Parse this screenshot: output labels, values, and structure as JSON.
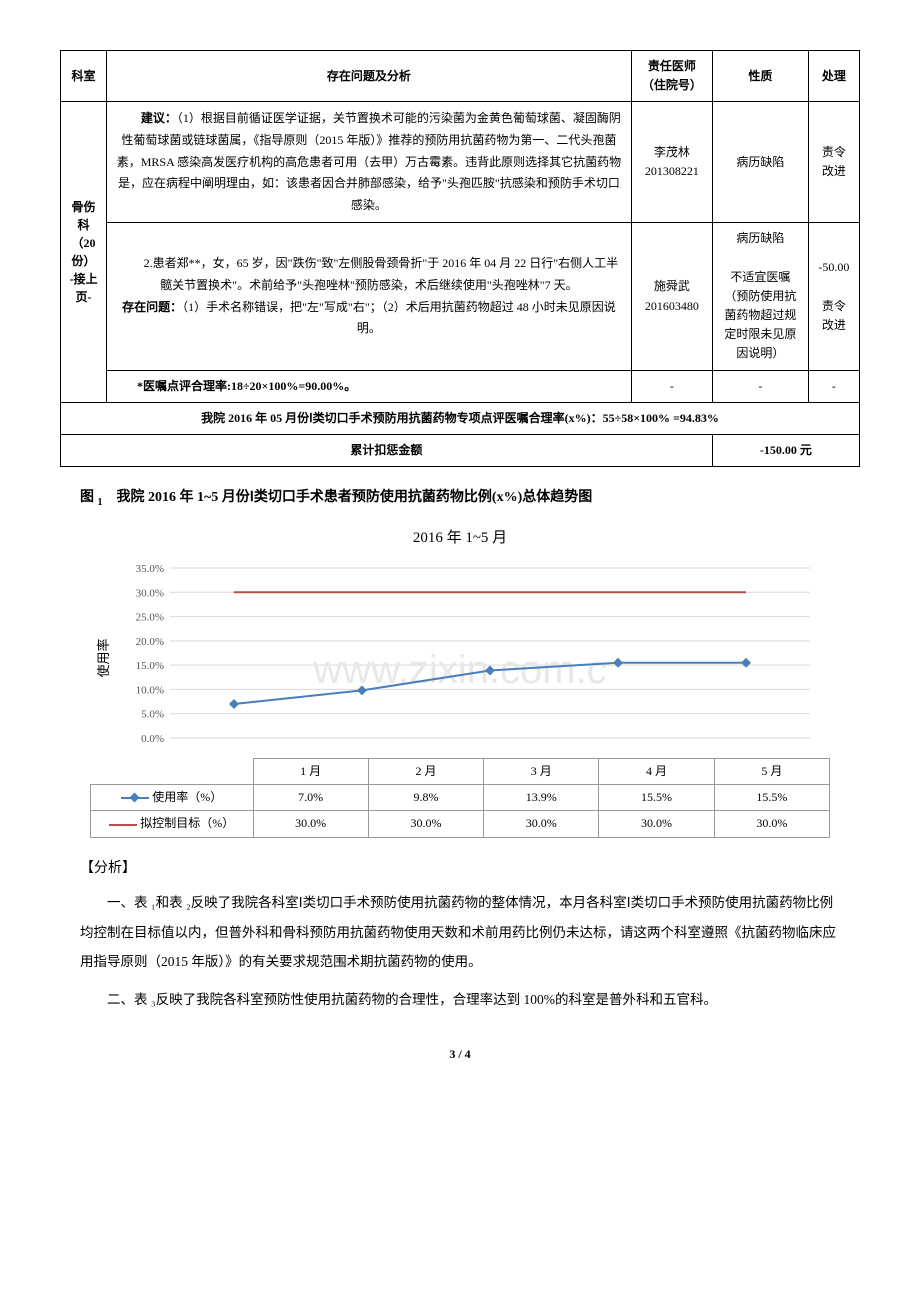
{
  "table": {
    "headers": [
      "科室",
      "存在问题及分析",
      "责任医师（住院号）",
      "性质",
      "处理"
    ],
    "dept": "骨伤科\n（20 份）\n-接上页-",
    "row1": {
      "problem": "建议：（1）根据目前循证医学证据，关节置换术可能的污染菌为金黄色葡萄球菌、凝固酶阴性葡萄球菌或链球菌属，《指导原则（2015 年版）》推荐的预防用抗菌药物为第一、二代头孢菌素，MRSA 感染高发医疗机构的高危患者可用（去甲）万古霉素。违背此原则选择其它抗菌药物是，应在病程中阐明理由，如：该患者因合并肺部感染，给予\"头孢匹胺\"抗感染和预防手术切口感染。",
      "doctor": "李茂林\n201308221",
      "nature": "病历缺陷",
      "action": "责令改进"
    },
    "row2": {
      "problem": "2.患者郑**，女，65 岁，因\"跌伤\"致\"左侧股骨颈骨折\"于 2016 年 04 月 22 日行\"右侧人工半髋关节置换术\"。术前给予\"头孢唑林\"预防感染，术后继续使用\"头孢唑林\"7 天。\n存在问题：（1）手术名称错误，把\"左\"写成\"右\"；（2）术后用抗菌药物超过 48 小时未见原因说明。",
      "doctor": "施舜武\n201603480",
      "nature": "病历缺陷\n\n不适宜医嘱（预防使用抗菌药物超过规定时限未见原因说明）",
      "action": "-50.00\n\n责令改进"
    },
    "rate_row": "*医嘱点评合理率:18÷20×100%=90.00%。",
    "summary": "我院 2016 年 05 月份Ⅰ类切口手术预防用抗菌药物专项点评医嘱合理率(x%)：55÷58×100% =94.83%",
    "penalty_label": "累计扣惩金额",
    "penalty_value": "-150.00 元"
  },
  "figure": {
    "title_prefix": "图",
    "title_sub": "1",
    "title": "我院 2016 年 1~5 月份Ⅰ类切口手术患者预防使用抗菌药物比例(x%)总体趋势图",
    "chart_title": "2016 年 1~5 月",
    "y_label": "使用率",
    "y_ticks": [
      "0.0%",
      "5.0%",
      "10.0%",
      "15.0%",
      "20.0%",
      "25.0%",
      "30.0%",
      "35.0%"
    ],
    "categories": [
      "1 月",
      "2 月",
      "3 月",
      "4 月",
      "5 月"
    ],
    "series": {
      "usage": {
        "label": "使用率（%）",
        "values": [
          "7.0%",
          "9.8%",
          "13.9%",
          "15.5%",
          "15.5%"
        ],
        "raw": [
          7.0,
          9.8,
          13.9,
          15.5,
          15.5
        ],
        "color": "#4a7ebb"
      },
      "target": {
        "label": "拟控制目标（%）",
        "values": [
          "30.0%",
          "30.0%",
          "30.0%",
          "30.0%",
          "30.0%"
        ],
        "raw": [
          30.0,
          30.0,
          30.0,
          30.0,
          30.0
        ],
        "color": "#be4b48"
      }
    },
    "y_max": 35.0,
    "grid_color": "#d9d9d9",
    "axis_color": "#888"
  },
  "analysis": {
    "heading": "【分析】",
    "p1": "一、表 ₁和表 ₂反映了我院各科室Ⅰ类切口手术预防使用抗菌药物的整体情况，本月各科室Ⅰ类切口手术预防使用抗菌药物比例均控制在目标值以内，但普外科和骨科预防用抗菌药物使用天数和术前用药比例仍未达标，请这两个科室遵照《抗菌药物临床应用指导原则（2015 年版）》的有关要求规范围术期抗菌药物的使用。",
    "p2": "二、表 ₃反映了我院各科室预防性使用抗菌药物的合理性，合理率达到 100%的科室是普外科和五官科。"
  },
  "page_number": "3 / 4",
  "watermark": "www.zixin.com.c"
}
